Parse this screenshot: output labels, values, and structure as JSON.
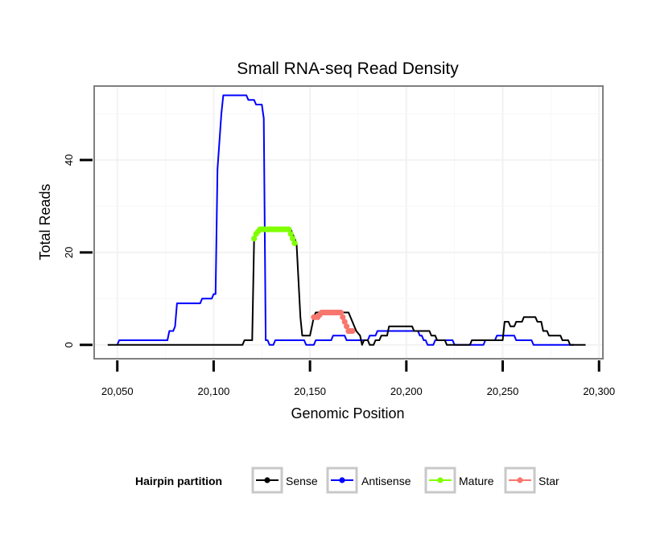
{
  "chart_data": {
    "type": "line",
    "title": "Small RNA-seq Read Density",
    "xlabel": "Genomic Position",
    "ylabel": "Total Reads",
    "xlim": [
      20038,
      20302
    ],
    "ylim": [
      -3,
      56
    ],
    "x_ticks": [
      20050,
      20100,
      20150,
      20200,
      20250,
      20300
    ],
    "x_tick_labels": [
      "20,050",
      "20,100",
      "20,150",
      "20,200",
      "20,250",
      "20,300"
    ],
    "y_ticks": [
      0,
      20,
      40
    ],
    "y_tick_labels": [
      "0",
      "20",
      "40"
    ],
    "grid": true,
    "legend_title": "Hairpin partition",
    "legend_position": "bottom",
    "series": [
      {
        "name": "Sense",
        "color": "#000000",
        "kind": "line",
        "points": [
          [
            20045,
            0
          ],
          [
            20060,
            0
          ],
          [
            20080,
            0
          ],
          [
            20100,
            0
          ],
          [
            20115,
            0
          ],
          [
            20116,
            1
          ],
          [
            20120,
            1
          ],
          [
            20121,
            23
          ],
          [
            20122,
            24
          ],
          [
            20123,
            25
          ],
          [
            20140,
            25
          ],
          [
            20141,
            24
          ],
          [
            20142,
            23
          ],
          [
            20143,
            22
          ],
          [
            20144,
            14
          ],
          [
            20145,
            6
          ],
          [
            20146,
            2
          ],
          [
            20150,
            2
          ],
          [
            20151,
            4
          ],
          [
            20152,
            6
          ],
          [
            20153,
            7
          ],
          [
            20170,
            7
          ],
          [
            20172,
            5
          ],
          [
            20174,
            3
          ],
          [
            20176,
            2
          ],
          [
            20177,
            0
          ],
          [
            20178,
            1
          ],
          [
            20180,
            1
          ],
          [
            20181,
            0
          ],
          [
            20183,
            0
          ],
          [
            20184,
            1
          ],
          [
            20186,
            1
          ],
          [
            20187,
            2
          ],
          [
            20190,
            2
          ],
          [
            20191,
            4
          ],
          [
            20203,
            4
          ],
          [
            20204,
            3
          ],
          [
            20212,
            3
          ],
          [
            20213,
            2
          ],
          [
            20215,
            2
          ],
          [
            20216,
            1
          ],
          [
            20220,
            1
          ],
          [
            20221,
            0
          ],
          [
            20233,
            0
          ],
          [
            20234,
            1
          ],
          [
            20250,
            1
          ],
          [
            20251,
            5
          ],
          [
            20253,
            5
          ],
          [
            20254,
            4
          ],
          [
            20256,
            4
          ],
          [
            20257,
            5
          ],
          [
            20260,
            5
          ],
          [
            20261,
            6
          ],
          [
            20267,
            6
          ],
          [
            20268,
            5
          ],
          [
            20270,
            5
          ],
          [
            20271,
            3
          ],
          [
            20273,
            3
          ],
          [
            20274,
            2
          ],
          [
            20280,
            2
          ],
          [
            20281,
            1
          ],
          [
            20284,
            1
          ],
          [
            20285,
            0
          ],
          [
            20293,
            0
          ]
        ]
      },
      {
        "name": "Antisense",
        "color": "#0000ff",
        "kind": "line",
        "points": [
          [
            20050,
            0
          ],
          [
            20051,
            1
          ],
          [
            20076,
            1
          ],
          [
            20077,
            3
          ],
          [
            20079,
            3
          ],
          [
            20080,
            4
          ],
          [
            20081,
            9
          ],
          [
            20093,
            9
          ],
          [
            20094,
            10
          ],
          [
            20099,
            10
          ],
          [
            20100,
            11
          ],
          [
            20101,
            11
          ],
          [
            20102,
            38
          ],
          [
            20104,
            50
          ],
          [
            20105,
            54
          ],
          [
            20117,
            54
          ],
          [
            20118,
            53
          ],
          [
            20121,
            53
          ],
          [
            20122,
            52
          ],
          [
            20125,
            52
          ],
          [
            20126,
            49
          ],
          [
            20127,
            1
          ],
          [
            20128,
            1
          ],
          [
            20129,
            0
          ],
          [
            20131,
            0
          ],
          [
            20132,
            1
          ],
          [
            20147,
            1
          ],
          [
            20148,
            0
          ],
          [
            20152,
            0
          ],
          [
            20153,
            1
          ],
          [
            20161,
            1
          ],
          [
            20162,
            2
          ],
          [
            20168,
            2
          ],
          [
            20169,
            1
          ],
          [
            20180,
            1
          ],
          [
            20181,
            2
          ],
          [
            20184,
            2
          ],
          [
            20185,
            3
          ],
          [
            20206,
            3
          ],
          [
            20207,
            2
          ],
          [
            20208,
            2
          ],
          [
            20209,
            1
          ],
          [
            20210,
            1
          ],
          [
            20211,
            0
          ],
          [
            20214,
            0
          ],
          [
            20215,
            1
          ],
          [
            20224,
            1
          ],
          [
            20225,
            0
          ],
          [
            20240,
            0
          ],
          [
            20241,
            1
          ],
          [
            20246,
            1
          ],
          [
            20247,
            2
          ],
          [
            20256,
            2
          ],
          [
            20257,
            1
          ],
          [
            20265,
            1
          ],
          [
            20266,
            0
          ],
          [
            20287,
            0
          ]
        ]
      },
      {
        "name": "Mature",
        "color": "#80ff00",
        "kind": "points",
        "points": [
          [
            20121,
            23
          ],
          [
            20122,
            24
          ],
          [
            20123,
            24.5
          ],
          [
            20124,
            25
          ],
          [
            20125,
            25
          ],
          [
            20126,
            25
          ],
          [
            20127,
            25
          ],
          [
            20128,
            25
          ],
          [
            20129,
            25
          ],
          [
            20130,
            25
          ],
          [
            20131,
            25
          ],
          [
            20132,
            25
          ],
          [
            20133,
            25
          ],
          [
            20134,
            25
          ],
          [
            20135,
            25
          ],
          [
            20136,
            25
          ],
          [
            20137,
            25
          ],
          [
            20138,
            25
          ],
          [
            20139,
            25
          ],
          [
            20140,
            24
          ],
          [
            20141,
            23
          ],
          [
            20142,
            22
          ]
        ]
      },
      {
        "name": "Star",
        "color": "#f8766d",
        "kind": "points",
        "points": [
          [
            20152,
            6
          ],
          [
            20153,
            6
          ],
          [
            20154,
            6
          ],
          [
            20155,
            6.5
          ],
          [
            20156,
            7
          ],
          [
            20157,
            7
          ],
          [
            20158,
            7
          ],
          [
            20159,
            7
          ],
          [
            20160,
            7
          ],
          [
            20161,
            7
          ],
          [
            20162,
            7
          ],
          [
            20163,
            7
          ],
          [
            20164,
            7
          ],
          [
            20165,
            7
          ],
          [
            20166,
            7
          ],
          [
            20167,
            6
          ],
          [
            20168,
            5
          ],
          [
            20169,
            4
          ],
          [
            20170,
            3
          ],
          [
            20171,
            3
          ],
          [
            20172,
            3
          ]
        ]
      }
    ]
  }
}
